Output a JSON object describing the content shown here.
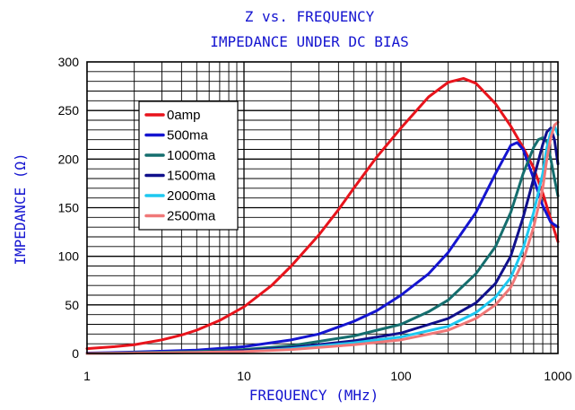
{
  "chart_data": {
    "type": "line",
    "title": "Z vs. FREQUENCY",
    "subtitle": "IMPEDANCE UNDER DC BIAS",
    "xlabel": "FREQUENCY (MHz)",
    "ylabel": "IMPEDANCE (Ω)",
    "x_scale": "log",
    "xlim": [
      1,
      1000
    ],
    "ylim": [
      0,
      300
    ],
    "x_ticks": [
      1,
      10,
      100,
      1000
    ],
    "x_tick_labels": [
      "1",
      "10",
      "100",
      "1000"
    ],
    "y_ticks": [
      0,
      50,
      100,
      150,
      200,
      250,
      300
    ],
    "y_tick_labels": [
      "0",
      "50",
      "100",
      "150",
      "200",
      "250",
      "300"
    ],
    "grid": true,
    "legend_position": "top-left",
    "series": [
      {
        "name": "0amp",
        "color": "#e8141c",
        "points": [
          [
            1,
            5
          ],
          [
            1.5,
            7
          ],
          [
            2,
            9
          ],
          [
            3,
            14
          ],
          [
            4,
            19
          ],
          [
            5,
            24
          ],
          [
            7,
            34
          ],
          [
            10,
            48
          ],
          [
            15,
            70
          ],
          [
            20,
            90
          ],
          [
            30,
            122
          ],
          [
            40,
            148
          ],
          [
            50,
            170
          ],
          [
            70,
            202
          ],
          [
            100,
            232
          ],
          [
            150,
            264
          ],
          [
            200,
            279
          ],
          [
            250,
            283
          ],
          [
            300,
            278
          ],
          [
            400,
            257
          ],
          [
            500,
            234
          ],
          [
            600,
            212
          ],
          [
            700,
            191
          ],
          [
            800,
            165
          ],
          [
            900,
            138
          ],
          [
            1000,
            115
          ]
        ]
      },
      {
        "name": "500ma",
        "color": "#1515d0",
        "points": [
          [
            1,
            0.5
          ],
          [
            2,
            1.5
          ],
          [
            5,
            3.5
          ],
          [
            10,
            7
          ],
          [
            20,
            14
          ],
          [
            30,
            20
          ],
          [
            50,
            33
          ],
          [
            70,
            44
          ],
          [
            100,
            60
          ],
          [
            150,
            82
          ],
          [
            200,
            104
          ],
          [
            300,
            145
          ],
          [
            400,
            185
          ],
          [
            500,
            214
          ],
          [
            550,
            217
          ],
          [
            600,
            210
          ],
          [
            700,
            180
          ],
          [
            800,
            152
          ],
          [
            900,
            135
          ],
          [
            1000,
            130
          ]
        ]
      },
      {
        "name": "1000ma",
        "color": "#156e6e",
        "points": [
          [
            1,
            0
          ],
          [
            5,
            2
          ],
          [
            10,
            4
          ],
          [
            20,
            8
          ],
          [
            50,
            18
          ],
          [
            100,
            30
          ],
          [
            150,
            43
          ],
          [
            200,
            55
          ],
          [
            300,
            82
          ],
          [
            400,
            110
          ],
          [
            500,
            145
          ],
          [
            600,
            185
          ],
          [
            700,
            212
          ],
          [
            750,
            220
          ],
          [
            800,
            222
          ],
          [
            850,
            218
          ],
          [
            900,
            200
          ],
          [
            950,
            180
          ],
          [
            1000,
            162
          ]
        ]
      },
      {
        "name": "1500ma",
        "color": "#10108c",
        "points": [
          [
            1,
            0
          ],
          [
            5,
            1
          ],
          [
            10,
            3
          ],
          [
            20,
            6
          ],
          [
            50,
            13
          ],
          [
            100,
            21
          ],
          [
            200,
            36
          ],
          [
            300,
            52
          ],
          [
            400,
            72
          ],
          [
            500,
            100
          ],
          [
            600,
            140
          ],
          [
            700,
            180
          ],
          [
            800,
            215
          ],
          [
            850,
            228
          ],
          [
            900,
            232
          ],
          [
            950,
            220
          ],
          [
            1000,
            195
          ]
        ]
      },
      {
        "name": "2000ma",
        "color": "#1ec8f0",
        "points": [
          [
            1,
            0
          ],
          [
            5,
            1
          ],
          [
            10,
            2
          ],
          [
            20,
            5
          ],
          [
            50,
            11
          ],
          [
            100,
            17
          ],
          [
            200,
            28
          ],
          [
            300,
            42
          ],
          [
            400,
            58
          ],
          [
            500,
            78
          ],
          [
            600,
            108
          ],
          [
            700,
            145
          ],
          [
            800,
            185
          ],
          [
            850,
            212
          ],
          [
            900,
            228
          ],
          [
            950,
            234
          ],
          [
            1000,
            225
          ]
        ]
      },
      {
        "name": "2500ma",
        "color": "#f07878",
        "points": [
          [
            1,
            0
          ],
          [
            5,
            1
          ],
          [
            10,
            2
          ],
          [
            20,
            4
          ],
          [
            50,
            9
          ],
          [
            100,
            14
          ],
          [
            200,
            24
          ],
          [
            300,
            36
          ],
          [
            400,
            50
          ],
          [
            500,
            68
          ],
          [
            600,
            95
          ],
          [
            700,
            130
          ],
          [
            800,
            170
          ],
          [
            850,
            200
          ],
          [
            900,
            222
          ],
          [
            950,
            235
          ],
          [
            1000,
            238
          ]
        ]
      }
    ]
  }
}
